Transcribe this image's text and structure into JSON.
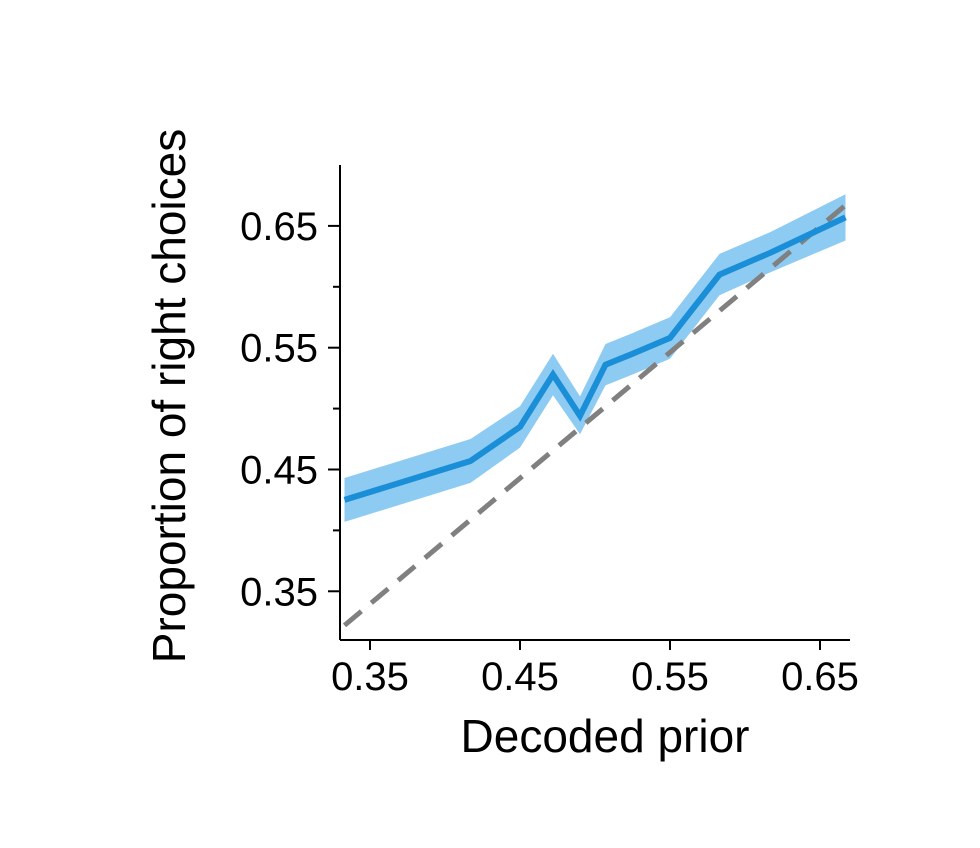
{
  "chart_data": {
    "type": "line",
    "xlabel": "Decoded prior",
    "ylabel": "Proportion of right choices",
    "xlim": [
      0.33,
      0.67
    ],
    "ylim": [
      0.31,
      0.7
    ],
    "xticks": [
      0.35,
      0.45,
      0.55,
      0.65
    ],
    "xtick_labels": [
      "0.35",
      "0.45",
      "0.55",
      "0.65"
    ],
    "yticks": [
      0.35,
      0.45,
      0.55,
      0.65
    ],
    "ytick_labels": [
      "0.35",
      "0.45",
      "0.55",
      "0.65"
    ],
    "yminor_ticks": [
      0.4,
      0.5,
      0.6
    ],
    "grid": false,
    "series": [
      {
        "x": [
          0.333,
          0.417,
          0.45,
          0.472,
          0.49,
          0.507,
          0.525,
          0.55,
          0.583,
          0.617,
          0.667
        ],
        "y": [
          0.425,
          0.457,
          0.485,
          0.528,
          0.494,
          0.536,
          0.545,
          0.558,
          0.61,
          0.628,
          0.657
        ],
        "lower": [
          0.407,
          0.439,
          0.468,
          0.511,
          0.479,
          0.519,
          0.528,
          0.541,
          0.593,
          0.612,
          0.638
        ],
        "upper": [
          0.443,
          0.475,
          0.502,
          0.545,
          0.51,
          0.553,
          0.562,
          0.575,
          0.627,
          0.645,
          0.676
        ],
        "color": "#1a8fd8",
        "band_color": "#8ecbf2"
      }
    ],
    "reference_line": {
      "x": [
        0.333,
        0.667
      ],
      "y": [
        0.322,
        0.667
      ],
      "color": "#808080",
      "style": "dashed"
    }
  }
}
